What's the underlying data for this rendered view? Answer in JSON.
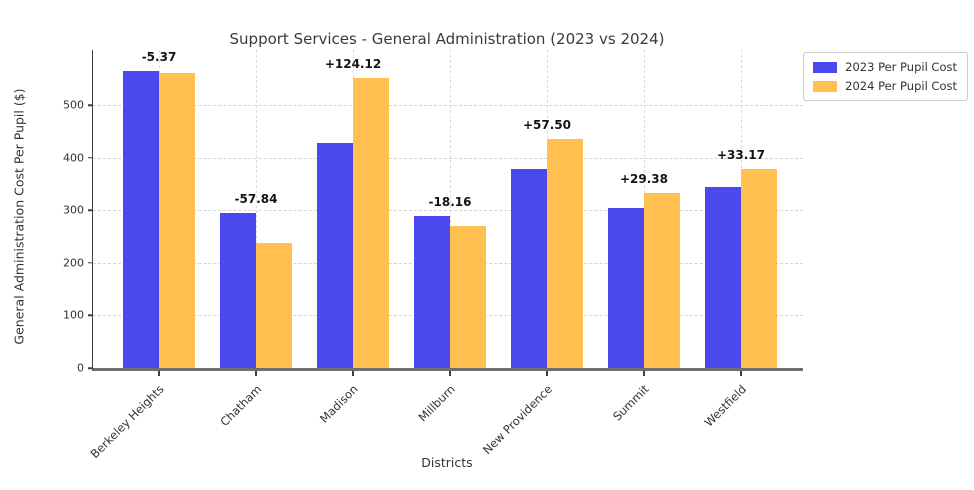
{
  "chart_data": {
    "type": "bar",
    "title": "Support Services - General Administration (2023 vs 2024)",
    "xlabel": "Districts",
    "ylabel": "General Administration Cost Per Pupil ($)",
    "categories": [
      "Berkeley Heights",
      "Chatham",
      "Madison",
      "Millburn",
      "New Providence",
      "Summit",
      "Westfield"
    ],
    "series": [
      {
        "name": "2023 Per Pupil Cost",
        "color": "#4B49EE",
        "values": [
          566.0,
          295.84,
          428.5,
          288.5,
          378.0,
          303.5,
          345.0
        ]
      },
      {
        "name": "2024 Per Pupil Cost",
        "color": "#FFC04F",
        "values": [
          560.63,
          238.0,
          552.62,
          270.34,
          435.5,
          332.88,
          378.17
        ]
      }
    ],
    "diff_labels": [
      "-5.37",
      "-57.84",
      "+124.12",
      "-18.16",
      "+57.50",
      "+29.38",
      "+33.17"
    ],
    "yticks": [
      0,
      100,
      200,
      300,
      400,
      500
    ],
    "ylim": [
      0,
      605
    ],
    "grid": "both-dashed",
    "legend_position": "upper-right-outside",
    "colors": {
      "grid": "#d4d4d4",
      "axis_spine": "#3f3f3f",
      "baseline": "#6e6e6e",
      "title_text": "#3b3b3b",
      "tick_text": "#333333",
      "annotation_text": "#141414",
      "background": "#ffffff"
    }
  }
}
